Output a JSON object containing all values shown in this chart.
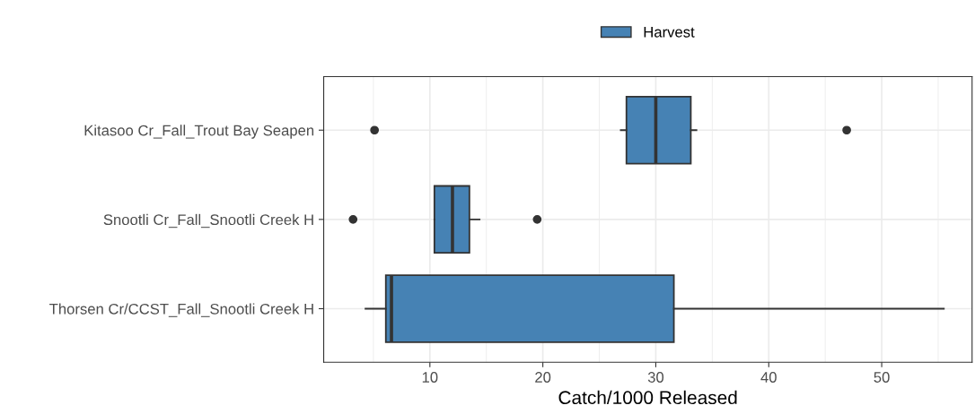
{
  "chart_data": {
    "type": "box",
    "orientation": "horizontal",
    "xlabel": "Catch/1000 Released",
    "categories": [
      "Kitasoo Cr_Fall_Trout Bay Seapen",
      "Snootli Cr_Fall_Snootli Creek H",
      "Thorsen Cr/CCST_Fall_Snootli Creek H"
    ],
    "series": [
      {
        "name": "Harvest",
        "color": "#4682b4",
        "boxes": [
          {
            "low": 26.9,
            "q1": 27.4,
            "median": 30.0,
            "q3": 33.1,
            "high": 33.6,
            "outliers": [
              5.1,
              46.9
            ]
          },
          {
            "low": 10.4,
            "q1": 10.4,
            "median": 12.0,
            "q3": 13.5,
            "high": 14.4,
            "outliers": [
              3.2,
              19.5
            ]
          },
          {
            "low": 4.3,
            "q1": 6.1,
            "median": 6.6,
            "q3": 31.6,
            "high": 55.5
          }
        ]
      }
    ],
    "xlim": [
      0.6,
      58.0
    ],
    "xticks": [
      10,
      20,
      30,
      40,
      50
    ],
    "grid": true,
    "legend": "top"
  }
}
